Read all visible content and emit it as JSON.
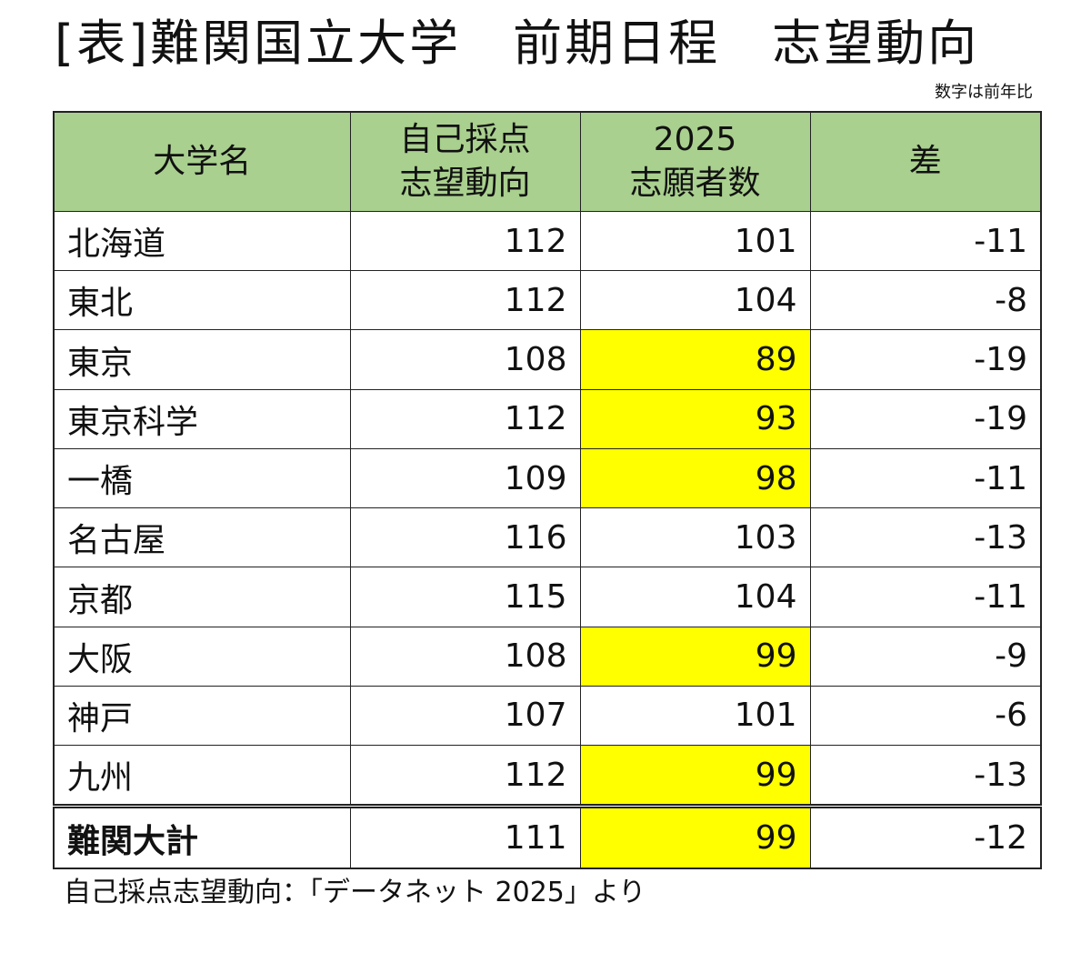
{
  "title": "[表]難関国立大学　前期日程　志望動向",
  "note": "数字は前年比",
  "table": {
    "headers": [
      {
        "line1": "大学名",
        "line2": ""
      },
      {
        "line1": "自己採点",
        "line2": "志望動向"
      },
      {
        "line1": "2025",
        "line2": "志願者数"
      },
      {
        "line1": "差",
        "line2": ""
      }
    ],
    "rows": [
      {
        "name": "北海道",
        "self": "112",
        "applicants": "101",
        "diff": "-11"
      },
      {
        "name": "東北",
        "self": "112",
        "applicants": "104",
        "diff": "-8"
      },
      {
        "name": "東京",
        "self": "108",
        "applicants": "89",
        "diff": "-19"
      },
      {
        "name": "東京科学",
        "self": "112",
        "applicants": "93",
        "diff": "-19"
      },
      {
        "name": "一橋",
        "self": "109",
        "applicants": "98",
        "diff": "-11"
      },
      {
        "name": "名古屋",
        "self": "116",
        "applicants": "103",
        "diff": "-13"
      },
      {
        "name": "京都",
        "self": "115",
        "applicants": "104",
        "diff": "-11"
      },
      {
        "name": "大阪",
        "self": "108",
        "applicants": "99",
        "diff": "-9"
      },
      {
        "name": "神戸",
        "self": "107",
        "applicants": "101",
        "diff": "-6"
      },
      {
        "name": "九州",
        "self": "112",
        "applicants": "99",
        "diff": "-13"
      }
    ],
    "total": {
      "name": "難関大計",
      "self": "111",
      "applicants": "99",
      "diff": "-12"
    }
  },
  "colors": {
    "header_bg": "#a9d08e",
    "highlight": "#ffff00"
  },
  "footer": "自己採点志望動向：「データネット 2025」より"
}
